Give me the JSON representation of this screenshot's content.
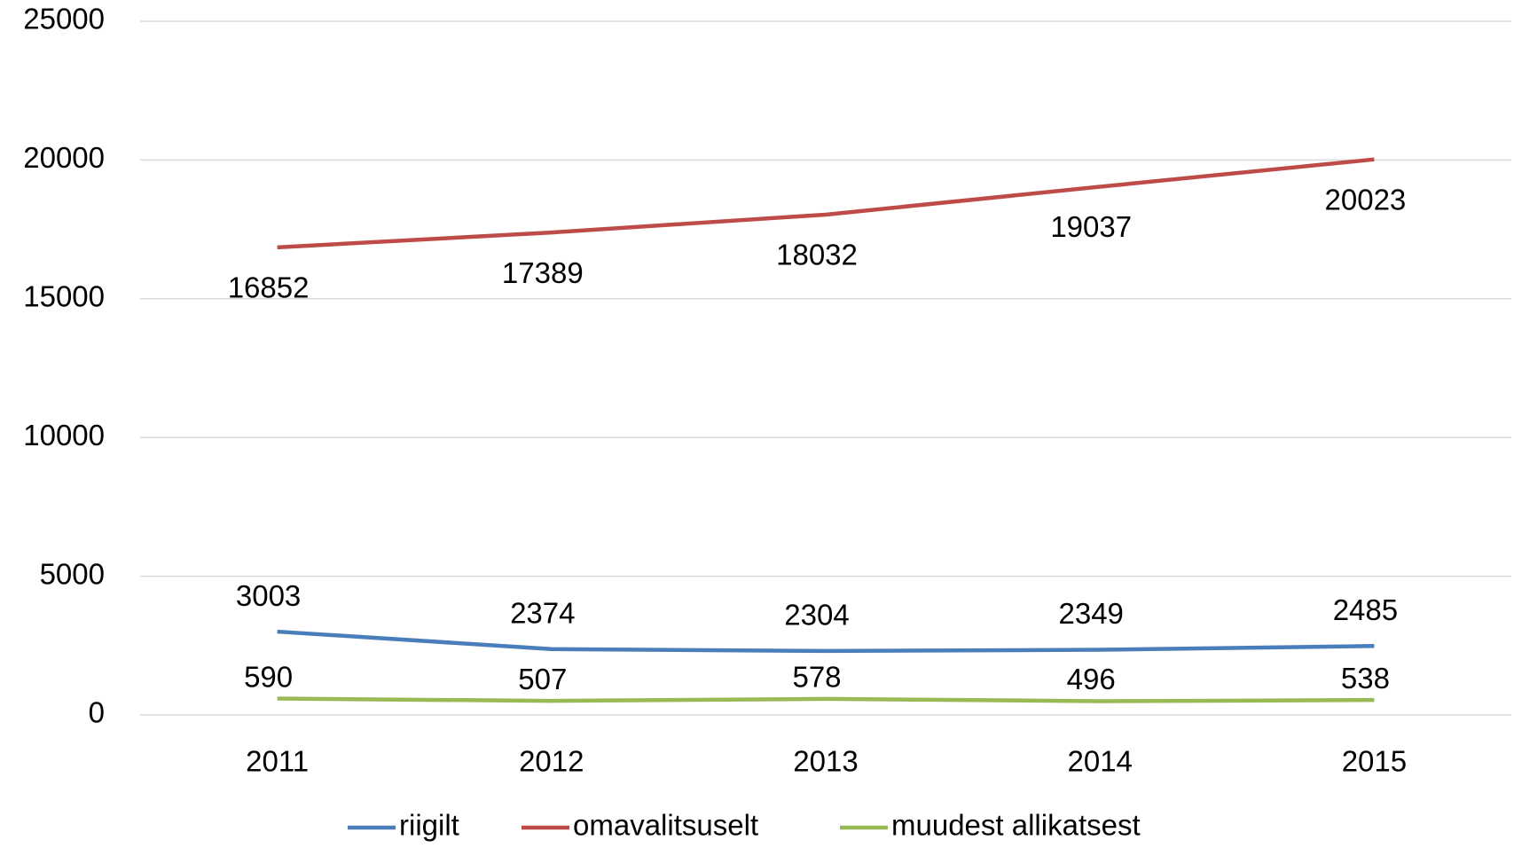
{
  "chart_data": {
    "type": "line",
    "categories": [
      "2011",
      "2012",
      "2013",
      "2014",
      "2015"
    ],
    "series": [
      {
        "name": "riigilt",
        "color": "#4a7ebb",
        "values": [
          3003,
          2374,
          2304,
          2349,
          2485
        ]
      },
      {
        "name": "omavalitsuselt",
        "color": "#be4b48",
        "values": [
          16852,
          17389,
          18032,
          19037,
          20023
        ]
      },
      {
        "name": "muudest allikatsest",
        "color": "#98b954",
        "values": [
          590,
          507,
          578,
          496,
          538
        ]
      }
    ],
    "ylim": [
      0,
      25000
    ],
    "yticks": [
      0,
      5000,
      10000,
      15000,
      20000,
      25000
    ],
    "grid": true,
    "legend": "bottom"
  }
}
